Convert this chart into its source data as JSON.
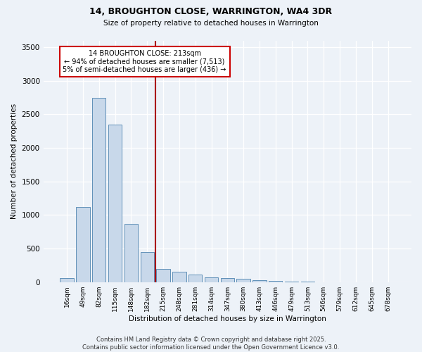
{
  "title1": "14, BROUGHTON CLOSE, WARRINGTON, WA4 3DR",
  "title2": "Size of property relative to detached houses in Warrington",
  "xlabel": "Distribution of detached houses by size in Warrington",
  "ylabel": "Number of detached properties",
  "categories": [
    "16sqm",
    "49sqm",
    "82sqm",
    "115sqm",
    "148sqm",
    "182sqm",
    "215sqm",
    "248sqm",
    "281sqm",
    "314sqm",
    "347sqm",
    "380sqm",
    "413sqm",
    "446sqm",
    "479sqm",
    "513sqm",
    "546sqm",
    "579sqm",
    "612sqm",
    "645sqm",
    "678sqm"
  ],
  "values": [
    55,
    1120,
    2750,
    2350,
    870,
    450,
    200,
    155,
    110,
    70,
    55,
    50,
    30,
    15,
    8,
    3,
    2,
    1,
    1,
    0,
    0
  ],
  "bar_color": "#c8d8ea",
  "bar_edge_color": "#6090b8",
  "annotation_text_line1": "14 BROUGHTON CLOSE: 213sqm",
  "annotation_text_line2": "← 94% of detached houses are smaller (7,513)",
  "annotation_text_line3": "5% of semi-detached houses are larger (436) →",
  "annotation_box_color": "#ffffff",
  "annotation_box_edge_color": "#cc0000",
  "vline_color": "#aa0000",
  "bg_color": "#edf2f8",
  "footer1": "Contains HM Land Registry data © Crown copyright and database right 2025.",
  "footer2": "Contains public sector information licensed under the Open Government Licence v3.0.",
  "ylim": [
    0,
    3600
  ],
  "yticks": [
    0,
    500,
    1000,
    1500,
    2000,
    2500,
    3000,
    3500
  ],
  "vline_x_index": 5.5
}
